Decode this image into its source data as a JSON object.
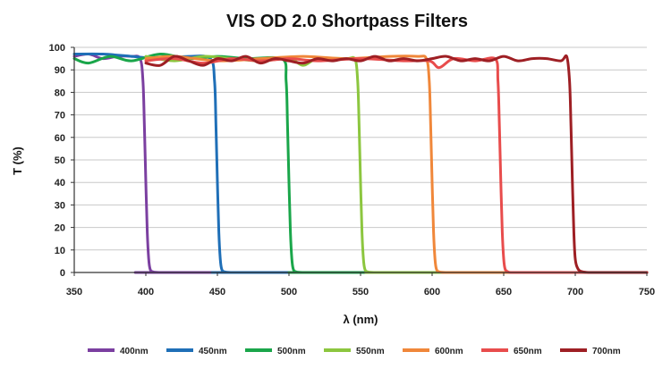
{
  "chart_data": {
    "type": "line",
    "title": "VIS OD 2.0 Shortpass Filters",
    "xlabel": "λ (nm)",
    "ylabel": "T (%)",
    "xlim": [
      350,
      750
    ],
    "ylim": [
      0,
      100
    ],
    "xticks": [
      350,
      400,
      450,
      500,
      550,
      600,
      650,
      700,
      750
    ],
    "yticks": [
      0,
      10,
      20,
      30,
      40,
      50,
      60,
      70,
      80,
      90,
      100
    ],
    "grid": "horizontal",
    "legend_position": "bottom",
    "series": [
      {
        "name": "400nm",
        "color": "#7b3fa0",
        "x": [
          350,
          360,
          370,
          380,
          390,
          396,
          398,
          399,
          400,
          401,
          402,
          403,
          405,
          410,
          420,
          750
        ],
        "y": [
          96,
          97,
          95,
          96,
          96,
          95,
          85,
          65,
          40,
          18,
          6,
          1.5,
          0.3,
          0,
          0,
          0
        ]
      },
      {
        "name": "450nm",
        "color": "#1f6fb7",
        "x": [
          350,
          370,
          390,
          410,
          430,
          445,
          448,
          449,
          450,
          451,
          452,
          453,
          455,
          460,
          470,
          750
        ],
        "y": [
          97,
          97,
          96,
          95,
          96,
          95,
          85,
          65,
          40,
          18,
          6,
          1.5,
          0.3,
          0,
          0,
          0
        ]
      },
      {
        "name": "500nm",
        "color": "#1aa64a",
        "x": [
          350,
          360,
          375,
          390,
          410,
          430,
          450,
          470,
          495,
          498,
          499,
          500,
          501,
          502,
          503,
          505,
          510,
          520,
          750
        ],
        "y": [
          95,
          93,
          96,
          94,
          97,
          95,
          96,
          95,
          95,
          85,
          65,
          40,
          18,
          6,
          1.5,
          0.3,
          0,
          0,
          0
        ]
      },
      {
        "name": "550nm",
        "color": "#8cc63f",
        "x": [
          400,
          420,
          440,
          460,
          480,
          500,
          510,
          520,
          540,
          546,
          548,
          549,
          550,
          551,
          552,
          553,
          555,
          560,
          570,
          750
        ],
        "y": [
          96,
          94,
          96,
          95,
          94,
          95,
          92,
          95,
          95,
          95,
          85,
          65,
          40,
          18,
          6,
          1.5,
          0.3,
          0,
          0,
          0
        ]
      },
      {
        "name": "600nm",
        "color": "#f0873a",
        "x": [
          400,
          420,
          450,
          480,
          510,
          540,
          570,
          590,
          596,
          598,
          599,
          600,
          601,
          602,
          603,
          605,
          610,
          620,
          750
        ],
        "y": [
          95,
          96,
          94,
          95,
          96,
          95,
          96,
          96,
          95,
          85,
          65,
          40,
          18,
          6,
          1.5,
          0.3,
          0,
          0,
          0
        ]
      },
      {
        "name": "650nm",
        "color": "#e84c4c",
        "x": [
          400,
          420,
          440,
          460,
          480,
          500,
          520,
          550,
          580,
          598,
          605,
          615,
          630,
          644,
          646,
          647,
          648,
          649,
          650,
          651,
          653,
          655,
          660,
          670,
          750
        ],
        "y": [
          94,
          95,
          93,
          95,
          94,
          95,
          94,
          95,
          94,
          94,
          91,
          95,
          94,
          95,
          85,
          65,
          40,
          18,
          6,
          1.5,
          0.3,
          0,
          0,
          0,
          0
        ]
      },
      {
        "name": "700nm",
        "color": "#9e1f24",
        "x": [
          400,
          410,
          420,
          430,
          440,
          450,
          460,
          470,
          480,
          490,
          500,
          510,
          520,
          530,
          540,
          550,
          560,
          570,
          580,
          590,
          600,
          610,
          620,
          630,
          640,
          650,
          660,
          670,
          680,
          690,
          694,
          696,
          697,
          698,
          699,
          700,
          702,
          705,
          710,
          720,
          750
        ],
        "y": [
          93,
          92,
          96,
          94,
          92,
          95,
          94,
          96,
          93,
          95,
          94,
          93,
          95,
          94,
          95,
          94,
          96,
          94,
          95,
          94,
          95,
          96,
          94,
          95,
          94,
          96,
          94,
          95,
          95,
          94,
          96,
          85,
          65,
          40,
          18,
          6,
          1.5,
          0.3,
          0,
          0,
          0
        ]
      }
    ]
  }
}
